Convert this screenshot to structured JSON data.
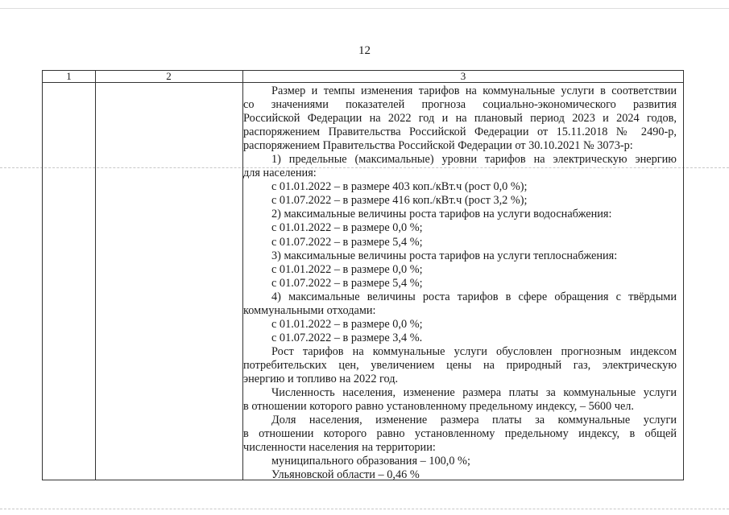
{
  "page_number": "12",
  "table": {
    "headers": [
      "1",
      "2",
      "3"
    ],
    "col3_lines": [
      {
        "text": "Размер и темпы изменения тарифов на коммунальные услуги в соответствии",
        "indent": true,
        "justify": true
      },
      {
        "text": "со значениями показателей прогноза социально-экономического развития",
        "indent": false,
        "justify": true
      },
      {
        "text": "Российской Федерации на 2022 год и на плановый период 2023 и 2024 годов,",
        "indent": false,
        "justify": true
      },
      {
        "text": "распоряжением Правительства Российской Федерации от 15.11.2018 № 2490-р,",
        "indent": false,
        "justify": true
      },
      {
        "text": "распоряжением Правительства Российской Федерации от 30.10.2021 № 3073-р:",
        "indent": false,
        "justify": false
      },
      {
        "text": "1) предельные (максимальные) уровни тарифов на электрическую энергию",
        "indent": true,
        "justify": true
      },
      {
        "text": "для населения:",
        "indent": false,
        "justify": false
      },
      {
        "text": "с 01.01.2022 – в размере 403 коп./кВт.ч (рост 0,0 %);",
        "indent": true,
        "justify": false
      },
      {
        "text": "с 01.07.2022 – в размере 416 коп./кВт.ч (рост 3,2 %);",
        "indent": true,
        "justify": false
      },
      {
        "text": "2) максимальные величины роста тарифов на услуги водоснабжения:",
        "indent": true,
        "justify": false
      },
      {
        "text": "с 01.01.2022 – в размере 0,0 %;",
        "indent": true,
        "justify": false
      },
      {
        "text": "с 01.07.2022 – в размере 5,4 %;",
        "indent": true,
        "justify": false
      },
      {
        "text": "3) максимальные величины роста тарифов на услуги теплоснабжения:",
        "indent": true,
        "justify": false
      },
      {
        "text": "с 01.01.2022 – в размере 0,0 %;",
        "indent": true,
        "justify": false
      },
      {
        "text": "с 01.07.2022 – в размере 5,4 %;",
        "indent": true,
        "justify": false
      },
      {
        "text": "4) максимальные величины роста тарифов в сфере обращения с твёрдыми",
        "indent": true,
        "justify": true
      },
      {
        "text": "коммунальными отходами:",
        "indent": false,
        "justify": false
      },
      {
        "text": "с 01.01.2022 – в размере 0,0 %;",
        "indent": true,
        "justify": false
      },
      {
        "text": "с 01.07.2022 – в размере 3,4 %.",
        "indent": true,
        "justify": false
      },
      {
        "text": "Рост тарифов на коммунальные услуги обусловлен прогнозным индексом",
        "indent": true,
        "justify": true
      },
      {
        "text": "потребительских цен, увеличением цены на природный газ, электрическую",
        "indent": false,
        "justify": true
      },
      {
        "text": "энергию и топливо на 2022 год.",
        "indent": false,
        "justify": false
      },
      {
        "text": "Численность населения, изменение размера платы за коммунальные услуги",
        "indent": true,
        "justify": true
      },
      {
        "text": "в отношении которого равно установленному предельному индексу, – 5600 чел.",
        "indent": false,
        "justify": false
      },
      {
        "text": "Доля населения, изменение размера платы за коммунальные услуги",
        "indent": true,
        "justify": true
      },
      {
        "text": "в отношении которого равно установленному предельному индексу, в общей",
        "indent": false,
        "justify": true
      },
      {
        "text": "численности населения на территории:",
        "indent": false,
        "justify": false
      },
      {
        "text": "муниципального образования – 100,0 %;",
        "indent": true,
        "justify": false
      },
      {
        "text": "Ульяновской области – 0,46 %",
        "indent": true,
        "justify": false
      }
    ]
  }
}
